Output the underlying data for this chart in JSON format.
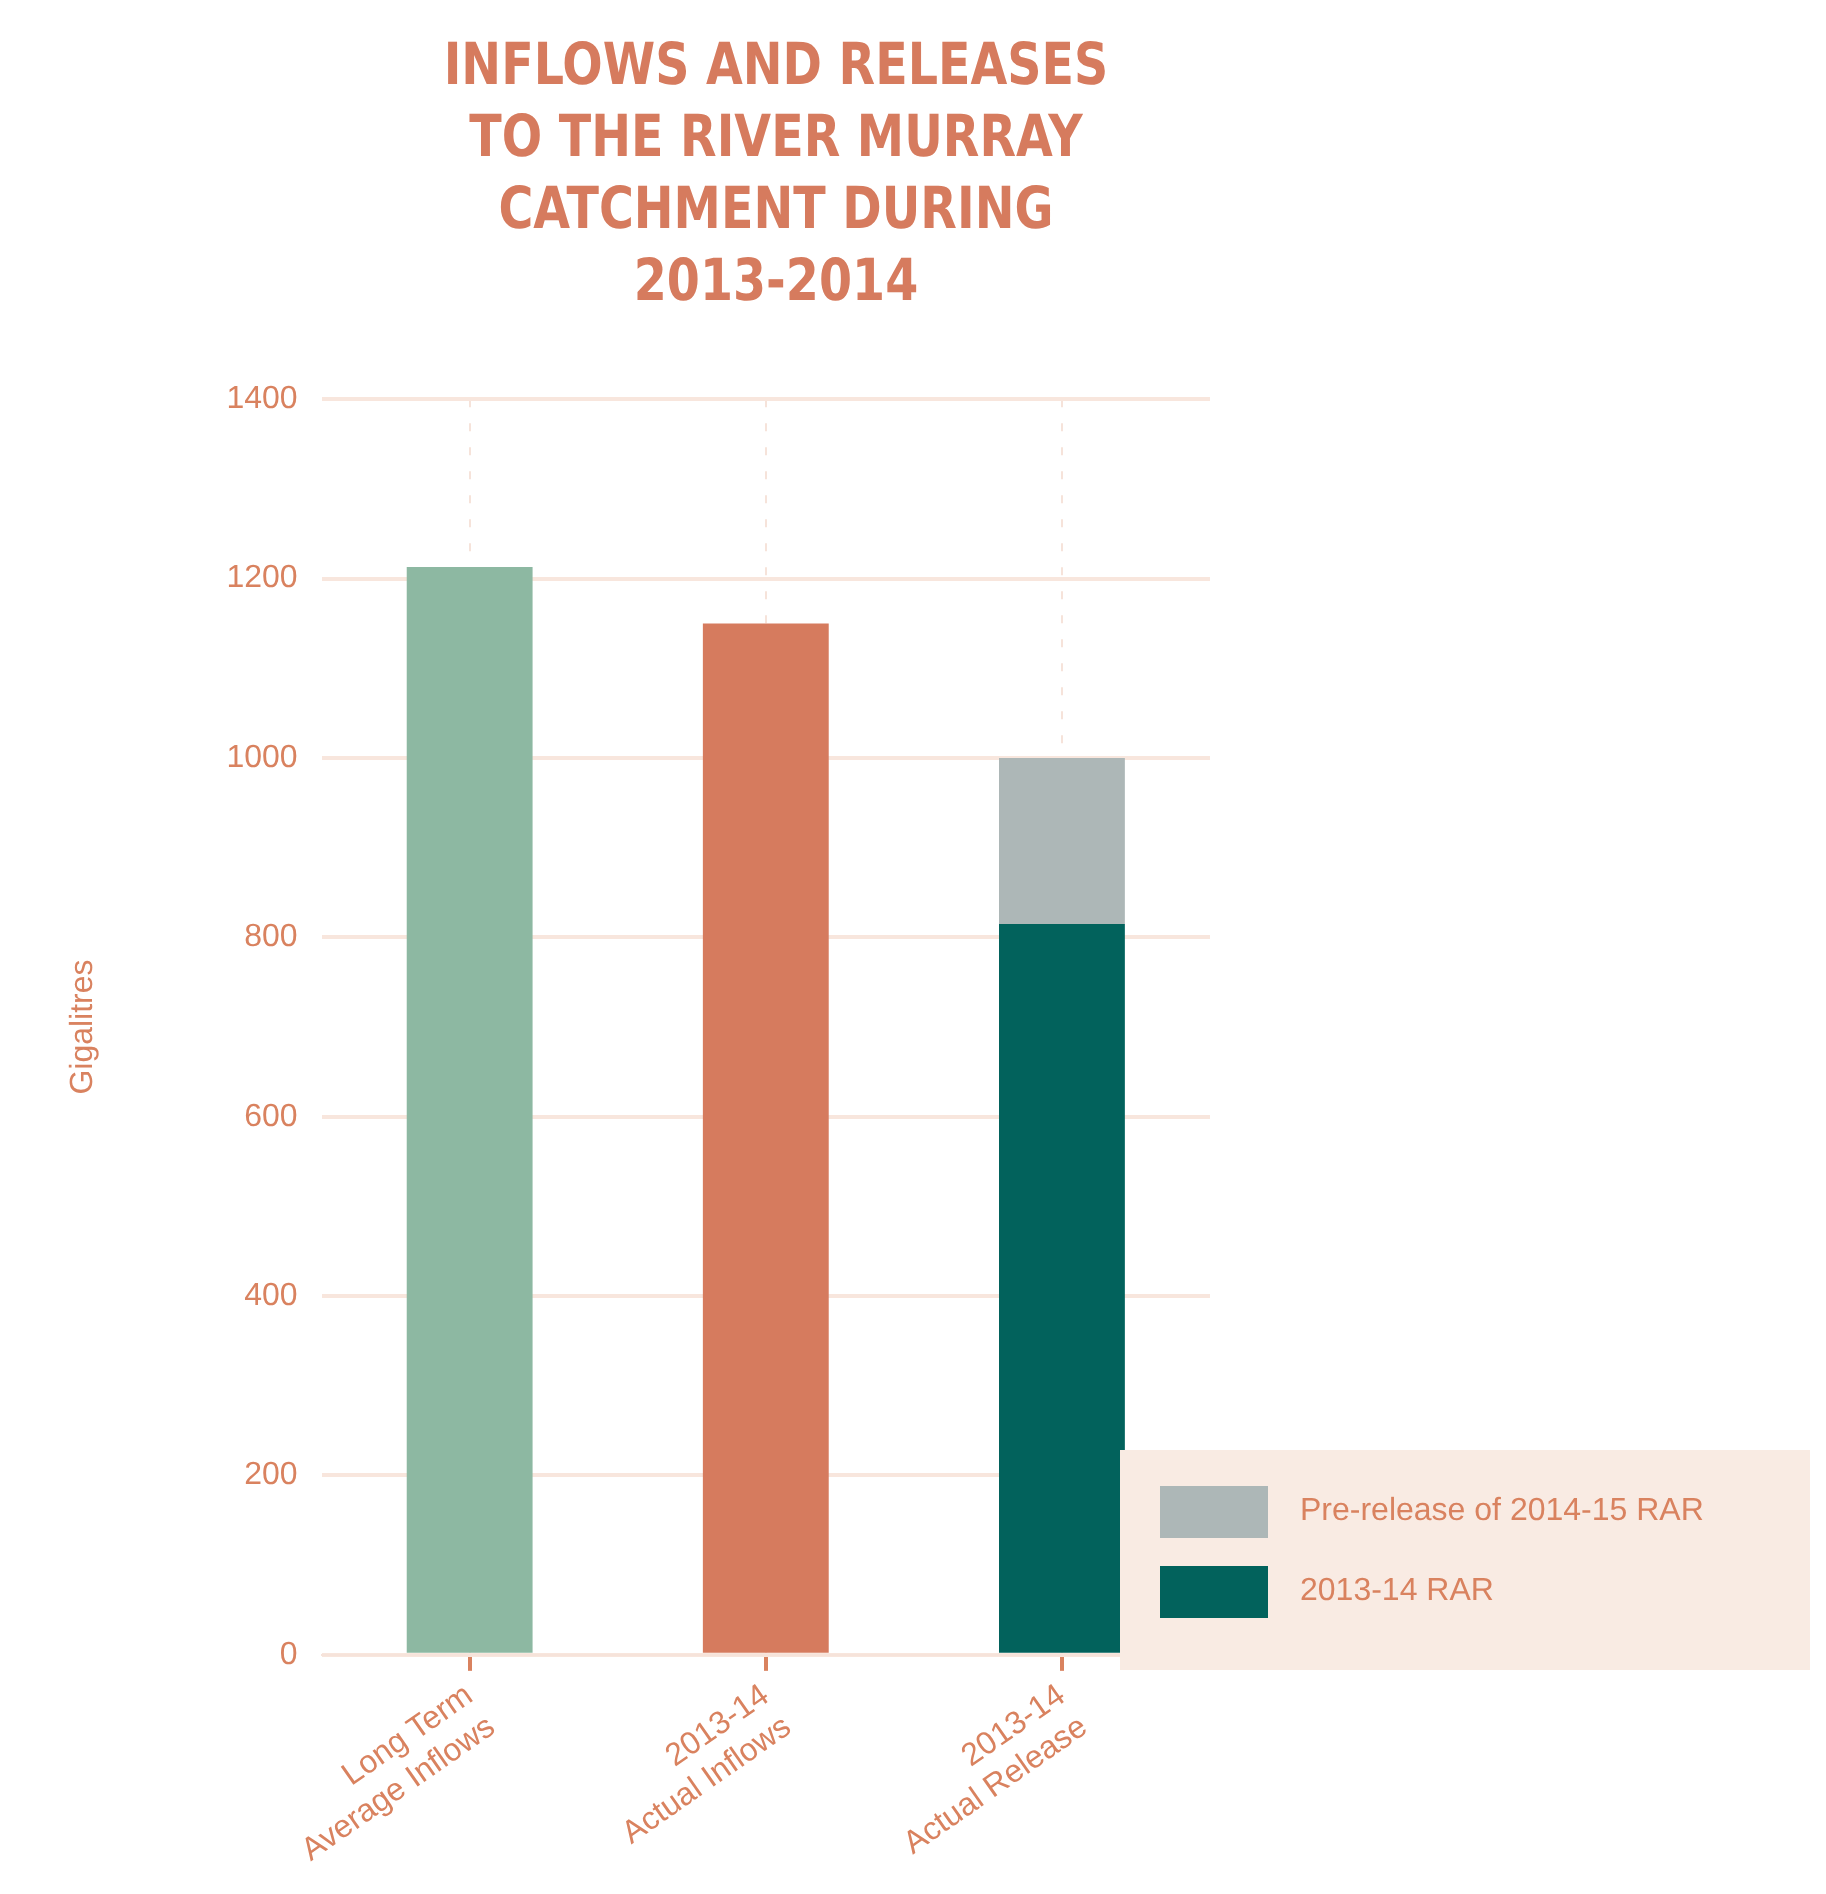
{
  "chart_data": {
    "type": "bar",
    "title": "INFLOWS AND RELEASES TO THE RIVER MURRAY CATCHMENT DURING 2013-2014",
    "ylabel": "Gigalitres",
    "categories": [
      "Long Term Average Inflows",
      "2013-14 Actual Inflows",
      "2013-14 Actual Release"
    ],
    "stacked": true,
    "series": [
      {
        "colors": [
          "#8db8a2",
          "#d67b5e",
          null
        ],
        "values": [
          1213,
          1150,
          null
        ]
      },
      {
        "name": "2013-14 RAR",
        "color": "#02625c",
        "values": [
          null,
          null,
          815
        ]
      },
      {
        "name": "Pre-release of 2014-15 RAR",
        "color": "#adb7b7",
        "values": [
          null,
          null,
          185
        ]
      }
    ],
    "ylim": [
      0,
      1400
    ],
    "yticks": [
      0,
      200,
      400,
      600,
      800,
      1000,
      1200,
      1400
    ],
    "grid": true,
    "legend": "bottom right"
  }
}
